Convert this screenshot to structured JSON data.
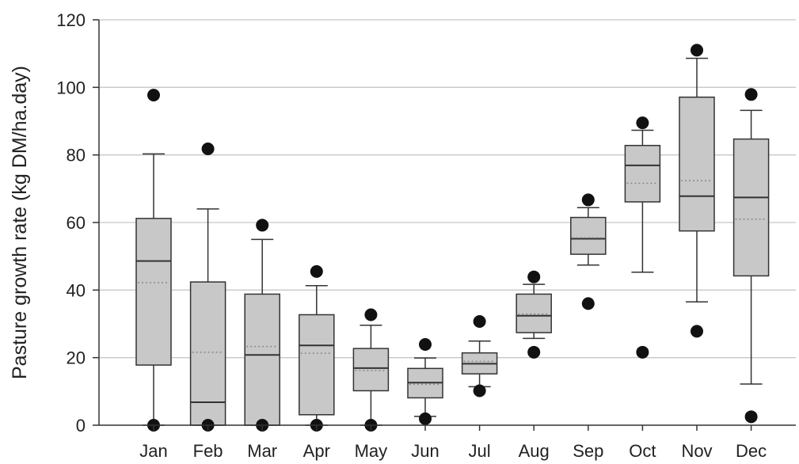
{
  "chart_data": {
    "type": "box",
    "title": "",
    "xlabel": "",
    "ylabel": "Pasture growth rate (kg DM/ha.day)",
    "ylim": [
      0,
      120
    ],
    "yticks": [
      0,
      20,
      40,
      60,
      80,
      100,
      120
    ],
    "ytick_labels": [
      "0",
      "20",
      "40",
      "60",
      "80",
      "100",
      "120"
    ],
    "grid": true,
    "legend": "none",
    "categories": [
      "Jan",
      "Feb",
      "Mar",
      "Apr",
      "May",
      "Jun",
      "Jul",
      "Aug",
      "Sep",
      "Oct",
      "Nov",
      "Dec"
    ],
    "boxes": [
      {
        "q1": 17.8,
        "median": 48.6,
        "q3": 61.2,
        "whisker_low": 0,
        "whisker_high": 80.3,
        "mean": 42.2,
        "outliers": [
          97.7,
          0
        ]
      },
      {
        "q1": 0,
        "median": 6.8,
        "q3": 42.4,
        "whisker_low": 0,
        "whisker_high": 64,
        "mean": 21.6,
        "outliers": [
          81.8,
          0
        ]
      },
      {
        "q1": 0,
        "median": 20.8,
        "q3": 38.8,
        "whisker_low": 0,
        "whisker_high": 55,
        "mean": 23.3,
        "outliers": [
          59.2,
          0
        ]
      },
      {
        "q1": 3.1,
        "median": 23.6,
        "q3": 32.7,
        "whisker_low": 0,
        "whisker_high": 41.3,
        "mean": 21.3,
        "outliers": [
          45.5,
          0
        ]
      },
      {
        "q1": 10.2,
        "median": 16.9,
        "q3": 22.7,
        "whisker_low": 0,
        "whisker_high": 29.6,
        "mean": 16.2,
        "outliers": [
          32.7,
          0
        ]
      },
      {
        "q1": 8.1,
        "median": 12.6,
        "q3": 16.8,
        "whisker_low": 2.6,
        "whisker_high": 19.9,
        "mean": 12.1,
        "outliers": [
          23.9,
          1.9
        ]
      },
      {
        "q1": 15.2,
        "median": 18.2,
        "q3": 21.4,
        "whisker_low": 11.4,
        "whisker_high": 24.9,
        "mean": 18.9,
        "outliers": [
          30.7,
          10.2
        ]
      },
      {
        "q1": 27.4,
        "median": 32.4,
        "q3": 38.8,
        "whisker_low": 25.7,
        "whisker_high": 41.7,
        "mean": 32.9,
        "outliers": [
          43.9,
          21.6
        ]
      },
      {
        "q1": 50.6,
        "median": 55.2,
        "q3": 61.5,
        "whisker_low": 47.4,
        "whisker_high": 64.4,
        "mean": 55.5,
        "outliers": [
          66.7,
          36
        ]
      },
      {
        "q1": 66.1,
        "median": 76.9,
        "q3": 82.8,
        "whisker_low": 45.3,
        "whisker_high": 87.3,
        "mean": 71.6,
        "outliers": [
          89.5,
          21.6
        ]
      },
      {
        "q1": 57.5,
        "median": 67.8,
        "q3": 97.1,
        "whisker_low": 36.5,
        "whisker_high": 108.6,
        "mean": 72.4,
        "outliers": [
          111,
          27.8
        ]
      },
      {
        "q1": 44.2,
        "median": 67.4,
        "q3": 84.7,
        "whisker_low": 12.2,
        "whisker_high": 93.2,
        "mean": 61,
        "outliers": [
          97.9,
          2.5
        ]
      }
    ],
    "colors": {
      "box_fill": "#c8c8c8",
      "stroke": "#333333",
      "grid": "#c8c8c8",
      "mean_line": "#888888",
      "outlier": "#111111"
    }
  }
}
